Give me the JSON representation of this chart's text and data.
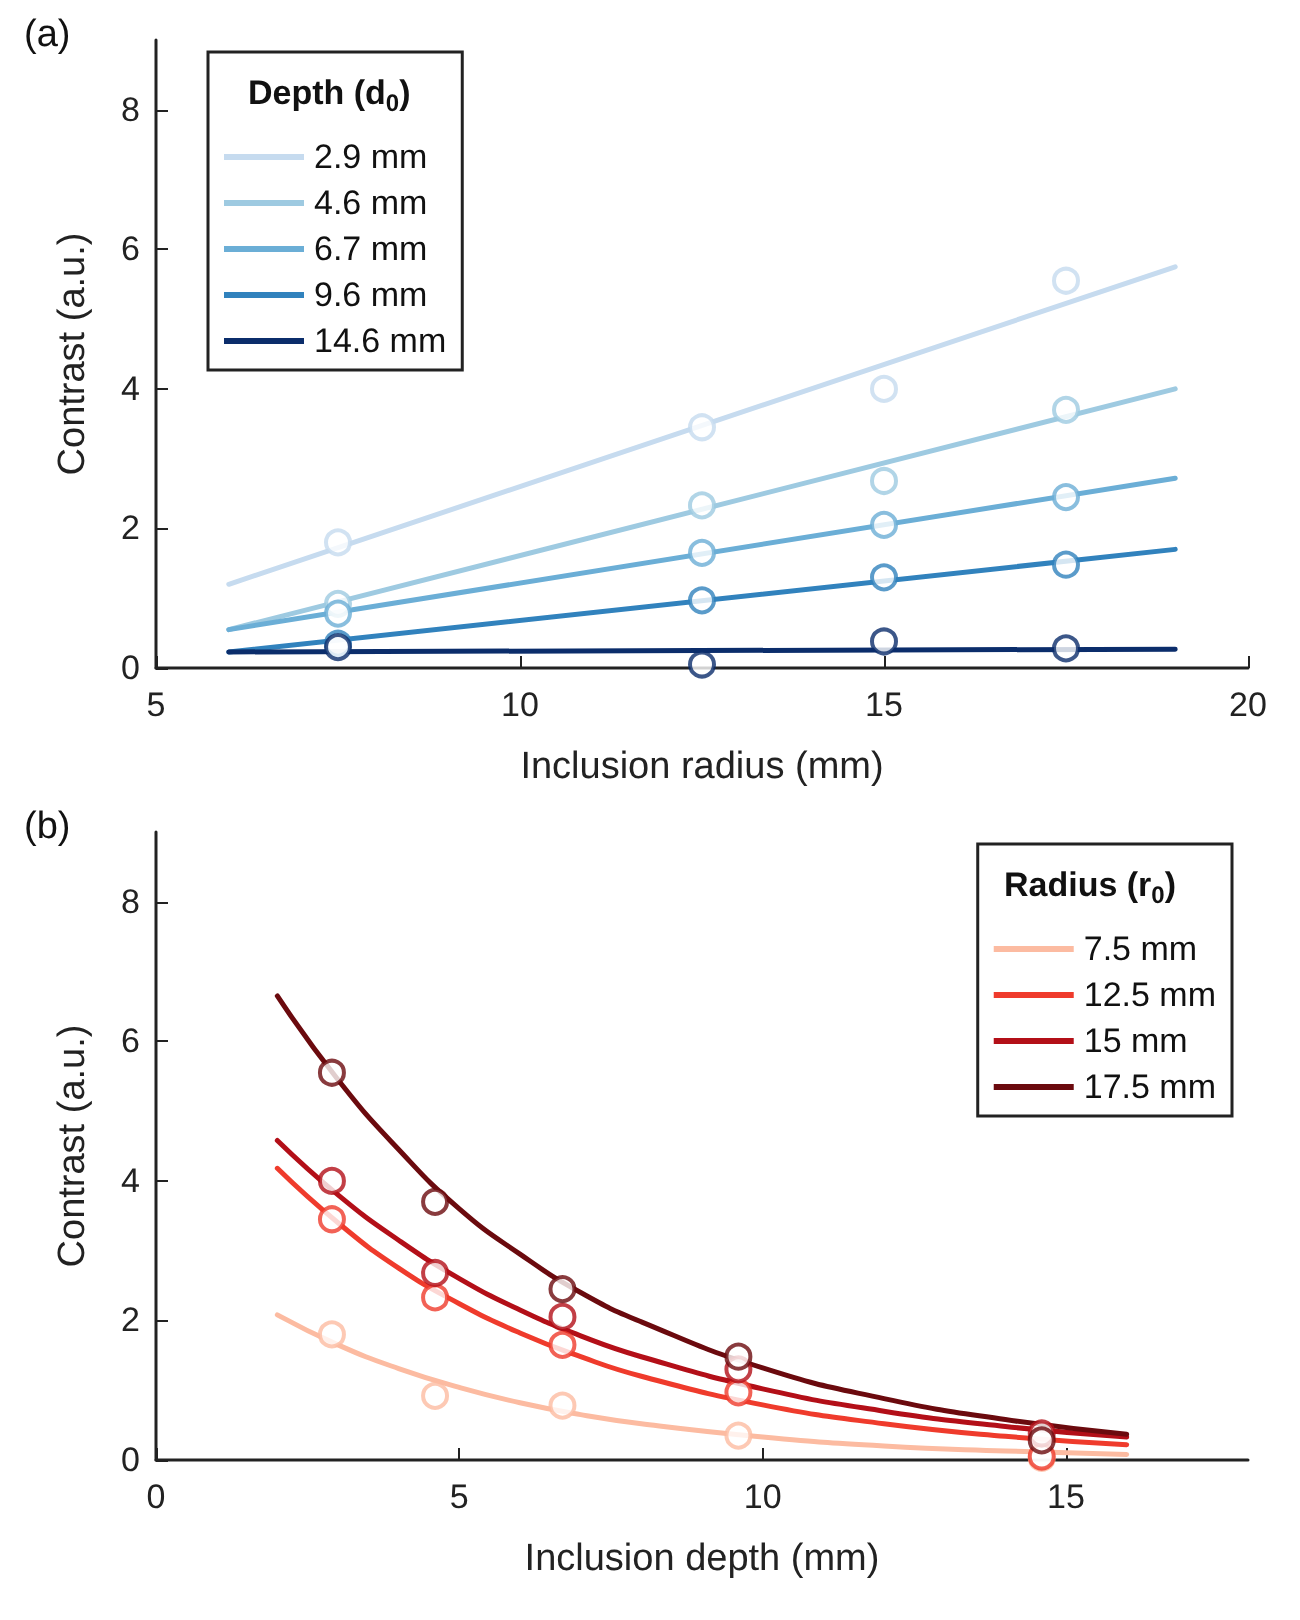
{
  "chart_data": [
    {
      "type": "scatter",
      "annotations": [
        "(a)"
      ],
      "xlabel": "Inclusion radius (mm)",
      "ylabel": "Contrast (a.u.)",
      "xlim": [
        5,
        20
      ],
      "xticks": [
        5,
        10,
        15,
        20
      ],
      "ylim": [
        0,
        9
      ],
      "yticks": [
        0,
        2,
        4,
        6,
        8
      ],
      "grid": false,
      "legend": "top left",
      "legend_title": "Depth (d$_{0}$)",
      "marker": "circle",
      "series": [
        {
          "name": "2.9 mm",
          "type": "line",
          "marker": "none",
          "color": "#c6dbef",
          "x": [
            6,
            19
          ],
          "values": [
            1.2,
            5.75
          ]
        },
        {
          "name": "4.6 mm",
          "type": "line",
          "marker": "none",
          "color": "#9ecae1",
          "x": [
            6,
            19
          ],
          "values": [
            0.55,
            4.0
          ]
        },
        {
          "name": "6.7 mm",
          "type": "line",
          "marker": "none",
          "color": "#6baed6",
          "x": [
            6,
            19
          ],
          "values": [
            0.55,
            2.72
          ]
        },
        {
          "name": "9.6 mm",
          "type": "line",
          "marker": "none",
          "color": "#3182bd",
          "x": [
            6,
            19
          ],
          "values": [
            0.23,
            1.7
          ]
        },
        {
          "name": "14.6 mm",
          "type": "line",
          "marker": "none",
          "color": "#0b2d6b",
          "x": [
            6,
            19
          ],
          "values": [
            0.23,
            0.27
          ]
        },
        {
          "color": "#c6dbef",
          "x": [
            7.5,
            12.5,
            15,
            17.5
          ],
          "values": [
            1.8,
            3.45,
            4.0,
            5.55
          ]
        },
        {
          "color": "#9ecae1",
          "x": [
            7.5,
            12.5,
            15,
            17.5
          ],
          "values": [
            0.92,
            2.33,
            2.68,
            3.7
          ]
        },
        {
          "color": "#6baed6",
          "x": [
            7.5,
            12.5,
            15,
            17.5
          ],
          "values": [
            0.78,
            1.65,
            2.05,
            2.45
          ]
        },
        {
          "color": "#3182bd",
          "x": [
            7.5,
            12.5,
            15,
            17.5
          ],
          "values": [
            0.35,
            0.97,
            1.3,
            1.48
          ]
        },
        {
          "color": "#0b2d6b",
          "x": [
            7.5,
            12.5,
            15,
            17.5
          ],
          "values": [
            0.3,
            0.05,
            0.38,
            0.28
          ]
        }
      ]
    },
    {
      "type": "scatter",
      "annotations": [
        "(b)"
      ],
      "xlabel": "Inclusion depth (mm)",
      "ylabel": "Contrast (a.u.)",
      "xlim": [
        0,
        18
      ],
      "xticks": [
        0,
        5,
        10,
        15
      ],
      "ylim": [
        0,
        9
      ],
      "yticks": [
        0,
        2,
        4,
        6,
        8
      ],
      "grid": false,
      "legend": "top right",
      "legend_title": "Radius (r$_{0}$)",
      "marker": "circle",
      "series": [
        {
          "name": "7.5 mm",
          "type": "line",
          "marker": "none",
          "color": "#fcbba1",
          "x": [
            2,
            3,
            4,
            5,
            6,
            7,
            8,
            10,
            12,
            14,
            16
          ],
          "values": [
            2.08,
            1.65,
            1.31,
            1.04,
            0.82,
            0.65,
            0.52,
            0.33,
            0.2,
            0.13,
            0.08
          ]
        },
        {
          "name": "12.5 mm",
          "type": "line",
          "marker": "none",
          "color": "#ef3b2c",
          "x": [
            2,
            3,
            4,
            5,
            6,
            7,
            8,
            10,
            12,
            14,
            16
          ],
          "values": [
            4.18,
            3.4,
            2.75,
            2.24,
            1.82,
            1.48,
            1.2,
            0.79,
            0.52,
            0.34,
            0.22
          ]
        },
        {
          "name": "15 mm",
          "type": "line",
          "marker": "none",
          "color": "#b30f18",
          "x": [
            2,
            3,
            4,
            5,
            6,
            7,
            8,
            10,
            12,
            14,
            16
          ],
          "values": [
            4.58,
            3.8,
            3.15,
            2.6,
            2.15,
            1.78,
            1.48,
            1.02,
            0.7,
            0.48,
            0.33
          ]
        },
        {
          "name": "17.5 mm",
          "type": "line",
          "marker": "none",
          "color": "#6b0a0e",
          "x": [
            2,
            3,
            4,
            5,
            6,
            7,
            8,
            10,
            12,
            14,
            16
          ],
          "values": [
            6.65,
            5.45,
            4.45,
            3.6,
            2.95,
            2.4,
            1.98,
            1.32,
            0.88,
            0.58,
            0.37
          ]
        },
        {
          "color": "#fcbba1",
          "x": [
            2.9,
            4.6,
            6.7,
            9.6,
            14.6
          ],
          "values": [
            1.8,
            0.92,
            0.78,
            0.35,
            0.03
          ]
        },
        {
          "color": "#ef3b2c",
          "x": [
            2.9,
            4.6,
            6.7,
            9.6,
            14.6
          ],
          "values": [
            3.45,
            2.33,
            1.65,
            0.97,
            0.05
          ]
        },
        {
          "color": "#b30f18",
          "x": [
            2.9,
            4.6,
            6.7,
            9.6,
            14.6
          ],
          "values": [
            4.0,
            2.68,
            2.05,
            1.3,
            0.38
          ]
        },
        {
          "color": "#6b0a0e",
          "x": [
            2.9,
            4.6,
            6.7,
            9.6,
            14.6
          ],
          "values": [
            5.55,
            3.7,
            2.45,
            1.48,
            0.28
          ]
        }
      ]
    }
  ]
}
